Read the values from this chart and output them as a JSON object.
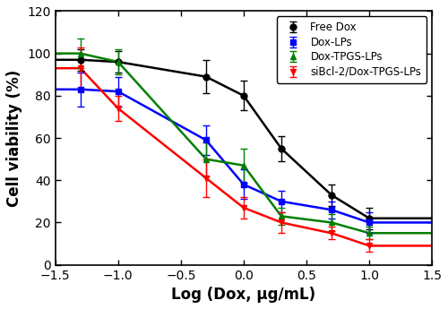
{
  "title": "",
  "xlabel": "Log (Dox, μg/mL)",
  "ylabel": "Cell viability (%)",
  "xlim": [
    -1.5,
    1.5
  ],
  "ylim": [
    0,
    120
  ],
  "yticks": [
    0,
    20,
    40,
    60,
    80,
    100,
    120
  ],
  "xticks": [
    -1.5,
    -1.0,
    -0.5,
    0.0,
    0.5,
    1.0,
    1.5
  ],
  "series": [
    {
      "label": "Free Dox",
      "color": "#000000",
      "marker": "o",
      "IC50_log": 0.436,
      "top_init": 100,
      "bottom_init": 10,
      "hill_init": 2.0,
      "x_data": [
        -1.3,
        -1.0,
        -0.3,
        0.0,
        0.3,
        0.7,
        1.0
      ],
      "y_data": [
        97,
        96,
        89,
        80,
        55,
        33,
        22
      ],
      "y_err": [
        5,
        5,
        8,
        7,
        6,
        5,
        5
      ]
    },
    {
      "label": "Dox-LPs",
      "color": "#0000ff",
      "marker": "s",
      "IC50_log": -0.081,
      "top_init": 95,
      "bottom_init": 12,
      "hill_init": 1.5,
      "x_data": [
        -1.3,
        -1.0,
        -0.3,
        0.0,
        0.3,
        0.7,
        1.0
      ],
      "y_data": [
        83,
        82,
        59,
        38,
        30,
        26,
        20
      ],
      "y_err": [
        8,
        7,
        7,
        7,
        5,
        4,
        5
      ]
    },
    {
      "label": "Dox-TPGS-LPs",
      "color": "#008000",
      "marker": "^",
      "IC50_log": -0.092,
      "top_init": 105,
      "bottom_init": 10,
      "hill_init": 1.5,
      "x_data": [
        -1.3,
        -1.0,
        -0.3,
        0.0,
        0.3,
        0.7,
        1.0
      ],
      "y_data": [
        100,
        96,
        50,
        47,
        23,
        20,
        15
      ],
      "y_err": [
        7,
        6,
        8,
        8,
        4,
        4,
        3
      ]
    },
    {
      "label": "siBcl-2/Dox-TPGS-LPs",
      "color": "#ff0000",
      "marker": "v",
      "IC50_log": -0.456,
      "top_init": 100,
      "bottom_init": 5,
      "hill_init": 1.5,
      "x_data": [
        -1.3,
        -1.0,
        -0.3,
        0.0,
        0.3,
        0.7,
        1.0
      ],
      "y_data": [
        93,
        74,
        41,
        27,
        20,
        15,
        9
      ],
      "y_err": [
        10,
        6,
        9,
        5,
        5,
        3,
        3
      ]
    }
  ],
  "legend_loc": "upper right",
  "figsize": [
    5.0,
    3.45
  ],
  "dpi": 100
}
